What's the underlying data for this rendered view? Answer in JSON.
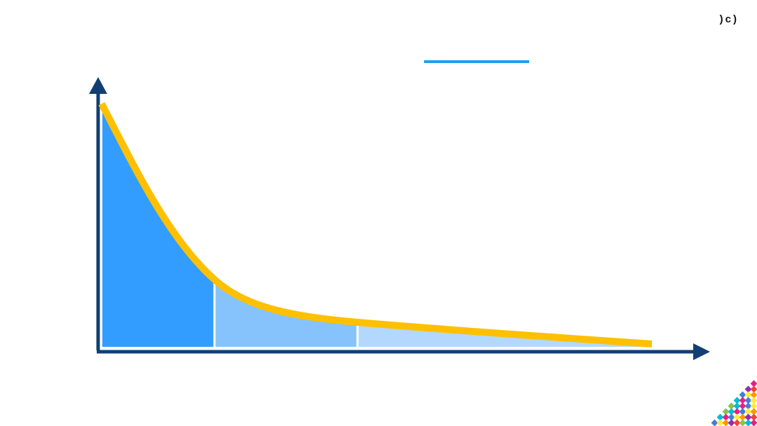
{
  "slide": {
    "corner_label": ")c)"
  },
  "colors": {
    "axis": "#123f73",
    "curve": "#ffc000",
    "region_1": "#339cff",
    "region_2": "#86c3fc",
    "region_3": "#b3d8fd",
    "legend_line": "#1fa0f0",
    "mosaic": [
      "#e91e8c",
      "#ff9800",
      "#8bc34a",
      "#3f7fd9",
      "#9c27b0",
      "#00bcd4",
      "#ffeb3b",
      "#f44336"
    ]
  },
  "icons": {
    "y_axis_arrow": "arrow-up-icon",
    "x_axis_arrow": "arrow-right-icon",
    "corner_decoration": "mosaic-triangle-icon"
  }
}
